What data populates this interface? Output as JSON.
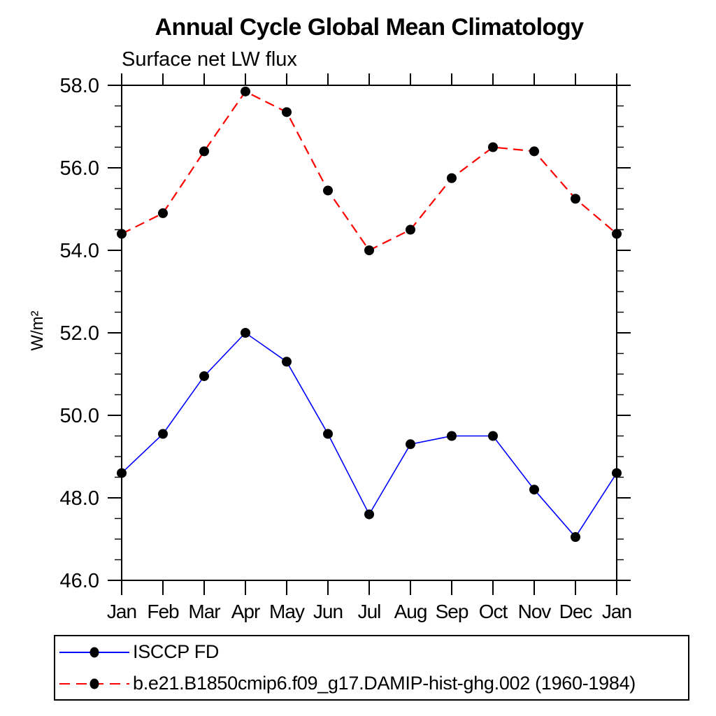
{
  "page": {
    "background": "#ffffff"
  },
  "chart_data": {
    "type": "line",
    "title": "Annual Cycle Global Mean Climatology",
    "subtitle": "Surface net LW flux",
    "ylabel": "W/m²",
    "xlabel": "",
    "categories": [
      "Jan",
      "Feb",
      "Mar",
      "Apr",
      "May",
      "Jun",
      "Jul",
      "Aug",
      "Sep",
      "Oct",
      "Nov",
      "Dec",
      "Jan"
    ],
    "ylim": [
      46.0,
      58.0
    ],
    "ytick_major_interval": 2.0,
    "ytick_minor_interval": 0.5,
    "ytick_labels": [
      "46.0",
      "48.0",
      "50.0",
      "52.0",
      "54.0",
      "56.0",
      "58.0"
    ],
    "grid": false,
    "legend_position": "bottom-left",
    "frame_color": "#000000",
    "marker_color": "#000000",
    "series": [
      {
        "name": "ISCCP FD",
        "color": "#0000ff",
        "line_style": "solid",
        "marker": "filled-circle",
        "values": [
          48.6,
          49.55,
          50.95,
          52.0,
          51.3,
          49.55,
          47.6,
          49.3,
          49.5,
          49.5,
          48.2,
          47.05,
          48.6
        ]
      },
      {
        "name": "b.e21.B1850cmip6.f09_g17.DAMIP-hist-ghg.002 (1960-1984)",
        "color": "#ff0000",
        "line_style": "dashed",
        "marker": "filled-circle",
        "values": [
          54.4,
          54.9,
          56.4,
          57.85,
          57.35,
          55.45,
          54.0,
          54.5,
          55.75,
          56.5,
          56.4,
          55.25,
          54.4
        ]
      }
    ]
  }
}
